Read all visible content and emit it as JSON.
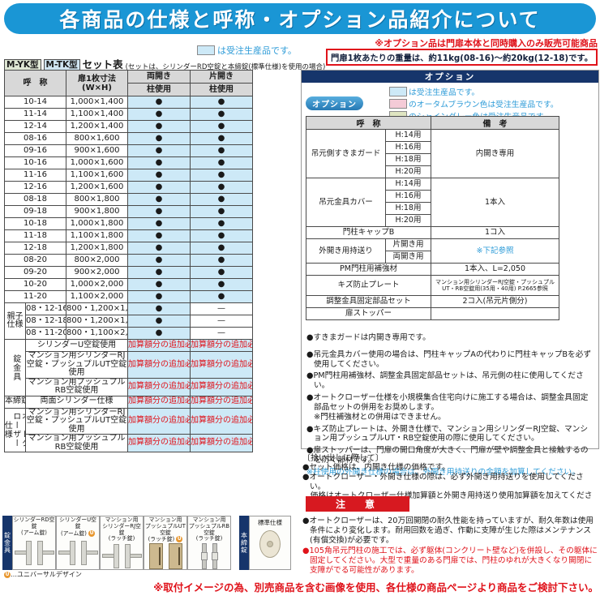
{
  "page": {
    "title": "各商品の仕様と呼称・オプション品紹介について"
  },
  "colors": {
    "title_blue": "#1a96d5",
    "navy": "#16356b",
    "red": "#e0131b",
    "blue_text": "#2f9cd8",
    "cell_blue": "#cde9f7",
    "swatch_pink": "#f4cbd7",
    "swatch_green": "#dfe5c1"
  },
  "left": {
    "legend_made_to_order": "は受注生産品です。",
    "model_badges": [
      "M-YK型",
      "M-TK型"
    ],
    "set_table_title": "セット表",
    "set_table_note": "(セットは、シリンダーRD空錠と本締錠(標準仕様)を使用の場合)",
    "table": {
      "headers": {
        "name": "呼　称",
        "size": "扉1枚寸法\n(W×H)",
        "double": "両開き",
        "single": "片開き",
        "pillar": "柱使用"
      },
      "mark": "●",
      "dash": "—",
      "surcharge": "加算額分の追加必要",
      "size_rows": [
        {
          "name": "10-14",
          "size": "1,000×1,400"
        },
        {
          "name": "11-14",
          "size": "1,100×1,400"
        },
        {
          "name": "12-14",
          "size": "1,200×1,400"
        },
        {
          "name": "08-16",
          "size": "800×1,600"
        },
        {
          "name": "09-16",
          "size": "900×1,600"
        },
        {
          "name": "10-16",
          "size": "1,000×1,600"
        },
        {
          "name": "11-16",
          "size": "1,100×1,600"
        },
        {
          "name": "12-16",
          "size": "1,200×1,600"
        },
        {
          "name": "08-18",
          "size": "800×1,800"
        },
        {
          "name": "09-18",
          "size": "900×1,800"
        },
        {
          "name": "10-18",
          "size": "1,000×1,800"
        },
        {
          "name": "11-18",
          "size": "1,100×1,800"
        },
        {
          "name": "12-18",
          "size": "1,200×1,800"
        },
        {
          "name": "08-20",
          "size": "800×2,000"
        },
        {
          "name": "09-20",
          "size": "900×2,000"
        },
        {
          "name": "10-20",
          "size": "1,000×2,000"
        },
        {
          "name": "11-20",
          "size": "1,100×2,000"
        }
      ],
      "oyako": {
        "group": "親子\n仕様",
        "rows": [
          {
            "name": "08・12-16",
            "size": "800・1,200×1,600"
          },
          {
            "name": "08・12-18",
            "size": "800・1,200×1,800"
          },
          {
            "name": "08・11-20",
            "size": "800・1,100×2,000"
          }
        ]
      },
      "lock_groups": [
        {
          "group": "錠金具",
          "rows": [
            "シリンダーU空錠使用",
            "マンション用シリンダーRJ空錠・プッシュプルUT空錠使用",
            "マンション用プッシュプルRB空錠使用"
          ]
        },
        {
          "group": "本締錠",
          "rows": [
            "両面シリンダー仕様"
          ]
        },
        {
          "group": "オートクローザー仕様",
          "rows": [
            "マンション用シリンダーRJ空錠・プッシュプルUT空錠使用",
            "マンション用プッシュプルRB空錠使用"
          ]
        }
      ]
    },
    "products": {
      "side_label": "錠金具",
      "items": [
        {
          "label": "シリンダーRD空錠\n(アーム錠)",
          "ud": false,
          "icon": "lever-handle-icon",
          "shape": "lever"
        },
        {
          "label": "シリンダーU空錠\n(アーム錠)",
          "ud": true,
          "icon": "lever-handle-icon",
          "shape": "lever"
        },
        {
          "label": "マンション用\nシリンダーRJ空錠\n(ラッチ錠)",
          "ud": false,
          "icon": "latch-handle-icon",
          "shape": "lever"
        },
        {
          "label": "マンション用\nプッシュプルUT空錠\n(ラッチ錠)",
          "ud": true,
          "icon": "pushpull-door-icon",
          "shape": "door"
        },
        {
          "label": "マンション用\nプッシュプルRB空錠\n(ラッチ錠)",
          "ud": false,
          "icon": "pushpull-bar-icon",
          "shape": "bar"
        }
      ],
      "ud_mark": "U",
      "ud_note": "…ユニバーサルデザイン",
      "honjime": {
        "side_label": "本締錠",
        "label": "標準仕様"
      }
    }
  },
  "right": {
    "note_option_red": "※オプション品は門扉本体と同時購入のみ販売可能商品",
    "weight_note": "門扉1枚あたりの重量は、約11kg(08-16)〜約20kg(12-18)です。",
    "section_title": "オプション",
    "legend": [
      {
        "swatch": "#cde9f7",
        "text": "は受注生産品です。"
      },
      {
        "swatch": "#f4cbd7",
        "text": "のオータムブラウン色は受注生産品です。"
      },
      {
        "swatch": "#dfe5c1",
        "text": "のシャイングレー色は受注生産品です。"
      }
    ],
    "option_badge": "オプション",
    "option_table": {
      "headers": {
        "name": "呼　称",
        "remark": "備　考"
      },
      "groups": [
        {
          "name": "吊元側すきまガード",
          "subs": [
            "H:14用",
            "H:16用",
            "H:18用",
            "H:20用"
          ],
          "remark": "内開き専用"
        },
        {
          "name": "吊元金具カバー",
          "subs": [
            "H:14用",
            "H:16用",
            "H:18用",
            "H:20用"
          ],
          "remark": "1本入"
        },
        {
          "name": "門柱キャップB",
          "subs": [],
          "remark": "1コ入"
        },
        {
          "name": "外開き用持送り",
          "subs": [
            "片開き用",
            "両開き用"
          ],
          "remark": "※下記参照",
          "remark_blue": true
        },
        {
          "name": "PM門柱用補強材",
          "subs": [],
          "remark": "1本入、L=2,050"
        },
        {
          "name": "キズ防止プレート",
          "subs": [],
          "remark": "マンション用シリンダーRJ空錠・プッシュプル\nUT・RB空錠用(35用・40用) P.2665参照",
          "remark_small": true
        },
        {
          "name": "調整金具固定部品セット",
          "subs": [],
          "remark": "2コ入(吊元片側分)"
        },
        {
          "name": "扉ストッパー",
          "subs": [],
          "remark": ""
        }
      ]
    },
    "notes": [
      "●すきまガードは内開き専用です。",
      "●吊元金具カバー使用の場合は、門柱キャップAの代わりに門柱キャップBを必ず使用してください。",
      "●PM門柱用補強材、調整金具固定部品セットは、吊元側の柱に使用してください。",
      "●オートクローザー仕様を小規模集合住宅向けに施工する場合は、調整金具固定部品セットの併用をお奨めします。\n※門柱補強材との併用はできません。",
      "●キズ防止プレートは、外開き仕様で、マンション用シリンダーRJ空錠、マンション用プッシュプルUT・RB空錠使用の際に使用してください。",
      "●扉ストッパーは、門扉の開口角度が大きく、門扉が壁や調整金具と接触するのを防ぐ部材です。"
    ],
    "note_blue": "※柱使用の外開き仕様の場合は、外開き用持送りの金額を加算してください。",
    "pickup": {
      "title": "〔拾い出しに際して〕",
      "items": [
        "●セット価格は、内開き仕様の価格です。",
        "●オートクローザー・外開き仕様の際は、必ず外開き用持送りを使用してください。",
        "　価格はオートクローザー仕様加算額と外開き用持送り使用加算額を加えてください。"
      ]
    },
    "caution": {
      "title": "注　意",
      "items": [
        {
          "text": "●オートクローザーは、20万回開閉の耐久性能を持っていますが、耐久年数は使用条件により変化します。耐用回数を過ぎ、作動に支障が生じた際はメンテナンス(有償交換)が必要です。",
          "red": false
        },
        {
          "text": "●105角吊元門柱の施工では、必ず躯体(コンクリート壁など)を併設し、その躯体に固定してください。大型で重量のある門扉では、門柱のゆれが大きくなり開閉に支障がでる可能性があります。",
          "red": true
        }
      ]
    },
    "bottom_note": "※取付イメージの為、別売商品を含む画像を使用、各仕様の商品ページより商品をご検討下さい。"
  }
}
